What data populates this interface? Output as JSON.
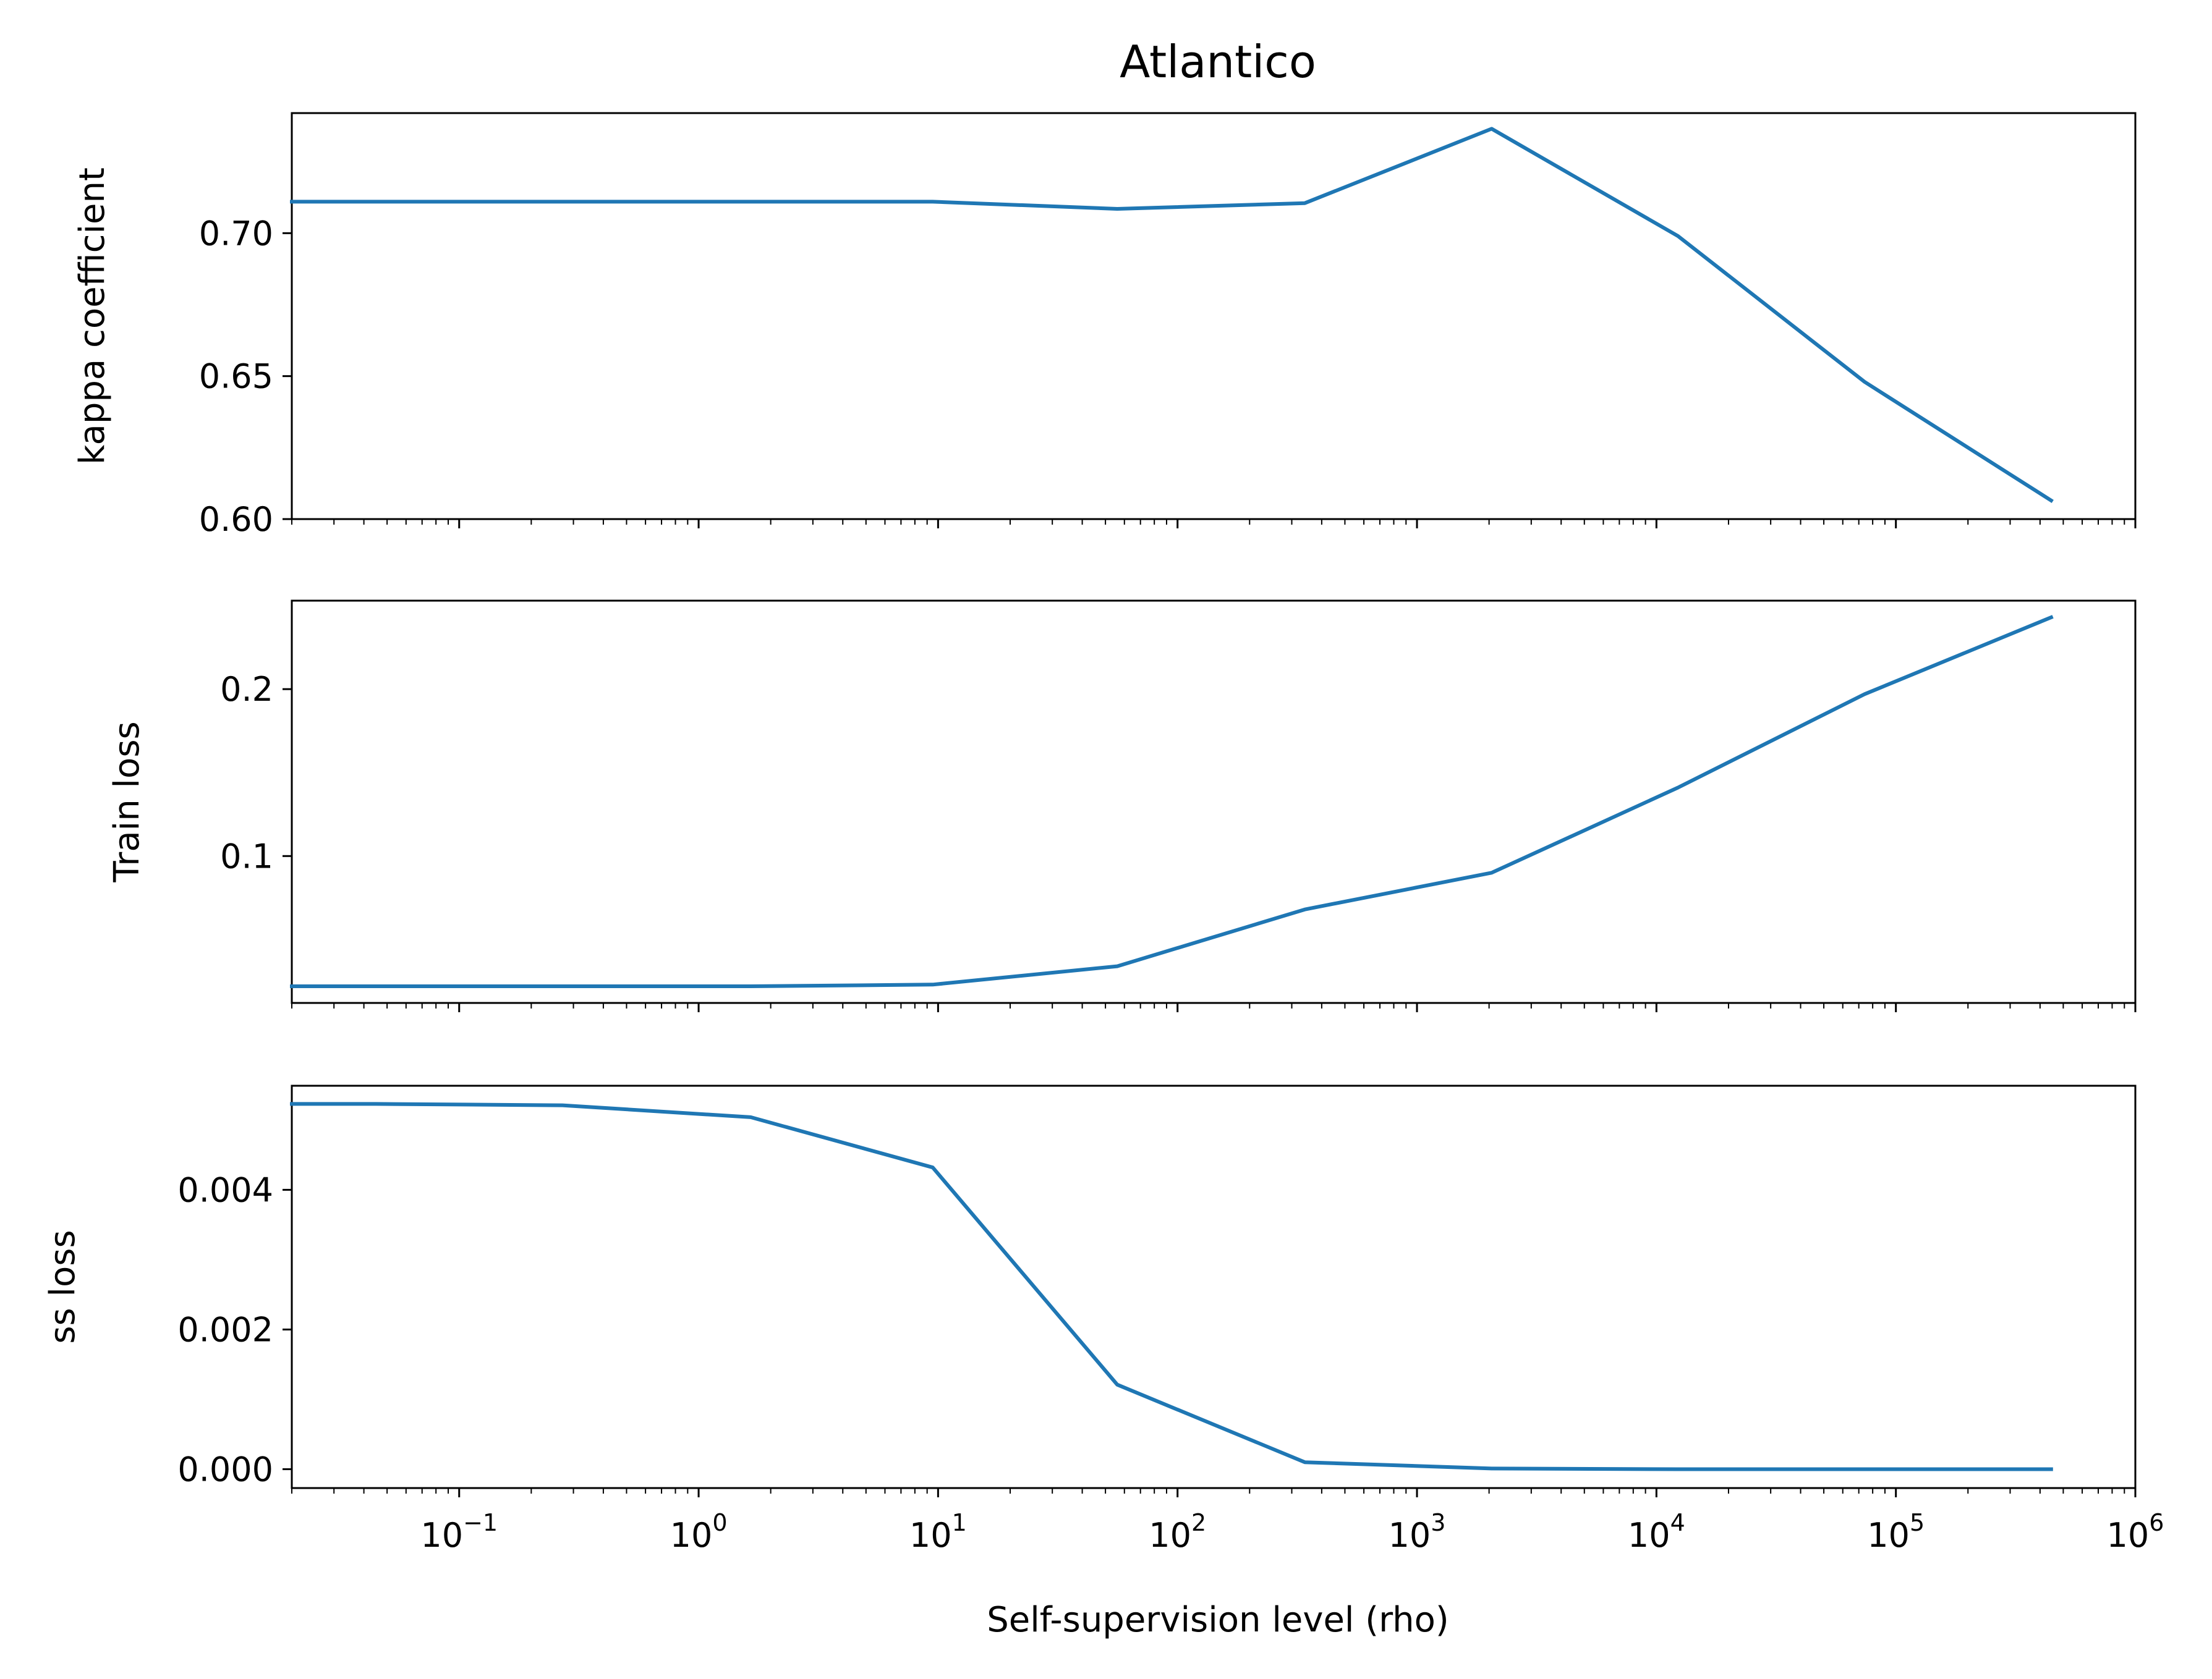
{
  "chart_data": [
    {
      "type": "line",
      "title": "Atlantico",
      "ylabel": "kappa coefficient",
      "xscale": "log",
      "xlim": [
        0.02,
        1000000
      ],
      "ylim": [
        0.6,
        0.742
      ],
      "yticks": [
        {
          "value": 0.6,
          "label": "0.60"
        },
        {
          "value": 0.65,
          "label": "0.65"
        },
        {
          "value": 0.7,
          "label": "0.70"
        }
      ],
      "color": "#1f77b4",
      "x": [
        0.02,
        1.65,
        9.5,
        56,
        340,
        2050,
        12300,
        74000,
        445000
      ],
      "y": [
        0.711,
        0.711,
        0.711,
        0.7085,
        0.7105,
        0.7365,
        0.699,
        0.648,
        0.6065
      ]
    },
    {
      "type": "line",
      "ylabel": "Train loss",
      "xscale": "log",
      "xlim": [
        0.02,
        1000000
      ],
      "ylim": [
        0.012,
        0.253
      ],
      "yticks": [
        {
          "value": 0.1,
          "label": "0.1"
        },
        {
          "value": 0.2,
          "label": "0.2"
        }
      ],
      "color": "#1f77b4",
      "x": [
        0.02,
        1.65,
        9.5,
        56,
        340,
        2050,
        12300,
        74000,
        445000
      ],
      "y": [
        0.022,
        0.022,
        0.023,
        0.034,
        0.068,
        0.09,
        0.141,
        0.197,
        0.243
      ]
    },
    {
      "type": "line",
      "xlabel": "Self-supervision level (rho)",
      "ylabel": "ss loss",
      "xscale": "log",
      "xlim": [
        0.02,
        1000000
      ],
      "ylim": [
        -0.00027,
        0.00549
      ],
      "yticks": [
        {
          "value": 0.0,
          "label": "0.000"
        },
        {
          "value": 0.002,
          "label": "0.002"
        },
        {
          "value": 0.004,
          "label": "0.004"
        }
      ],
      "xticks": [
        {
          "value": 0.1,
          "base": "10",
          "exp": "−1"
        },
        {
          "value": 1,
          "base": "10",
          "exp": "0"
        },
        {
          "value": 10,
          "base": "10",
          "exp": "1"
        },
        {
          "value": 100,
          "base": "10",
          "exp": "2"
        },
        {
          "value": 1000,
          "base": "10",
          "exp": "3"
        },
        {
          "value": 10000,
          "base": "10",
          "exp": "4"
        },
        {
          "value": 100000,
          "base": "10",
          "exp": "5"
        },
        {
          "value": 1000000,
          "base": "10",
          "exp": "6"
        }
      ],
      "color": "#1f77b4",
      "x": [
        0.02,
        0.045,
        0.27,
        1.65,
        9.5,
        56,
        340,
        2050,
        12300,
        74000,
        445000
      ],
      "y": [
        0.00523,
        0.00523,
        0.00521,
        0.00504,
        0.00432,
        0.00121,
        0.0001,
        1e-05,
        0.0,
        0.0,
        0.0
      ]
    }
  ]
}
